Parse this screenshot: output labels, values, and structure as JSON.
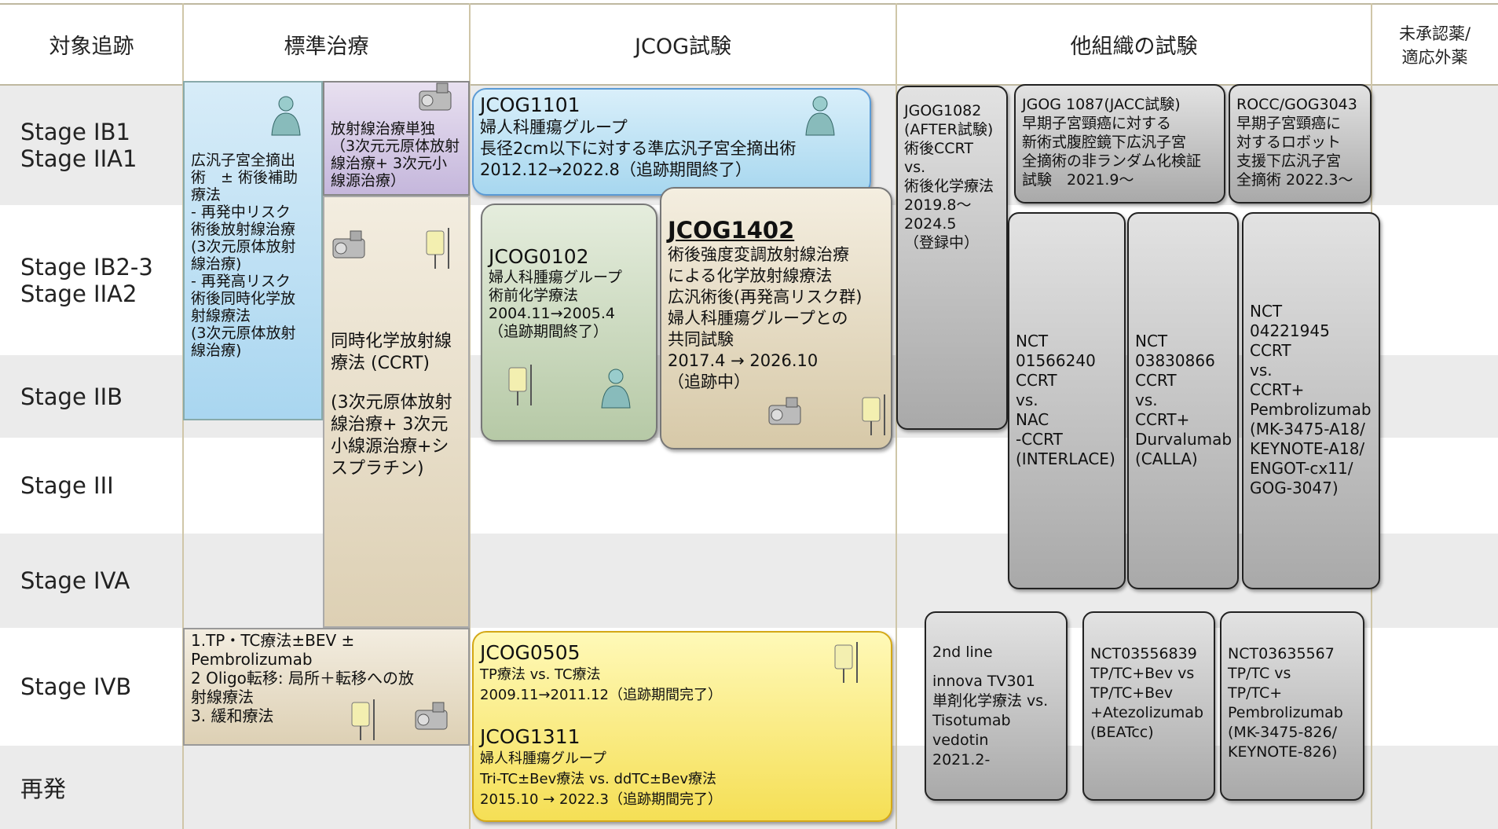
{
  "header": {
    "columns": [
      {
        "lines": [
          "対象追跡"
        ]
      },
      {
        "lines": [
          "標準治療"
        ]
      },
      {
        "lines": [
          "JCOG試験"
        ]
      },
      {
        "lines": [
          "他組織の試験"
        ]
      },
      {
        "lines": [
          "未承認薬/",
          "適応外薬"
        ]
      }
    ]
  },
  "rows": [
    {
      "lines": [
        "Stage IB1",
        "Stage IIA1"
      ]
    },
    {
      "lines": [
        "Stage IB2-3",
        "Stage IIA2"
      ]
    },
    {
      "lines": [
        "Stage IIB"
      ]
    },
    {
      "lines": [
        "Stage III"
      ]
    },
    {
      "lines": [
        "Stage IVA"
      ]
    },
    {
      "lines": [
        "Stage IVB"
      ]
    },
    {
      "lines": [
        "再発"
      ]
    }
  ],
  "boxes": [
    {
      "lines": [
        "広汎子宮全摘出",
        "術　± 術後補助",
        "療法",
        "- 再発中リスク",
        "術後放射線治療",
        "(3次元原体放射",
        "線治療)",
        "- 再発高リスク",
        "術後同時化学放",
        "射線療法",
        "(3次元原体放射",
        "線治療)"
      ]
    },
    {
      "lines": [
        "放射線治療単独",
        "（3次元元原体放射",
        "線治療+ 3次元小",
        "線源治療）"
      ]
    },
    {
      "lines": [
        "同時化学放射線",
        "療法 (CCRT)",
        "(3次元原体放射",
        "線治療+ 3次元",
        "小線源治療+シ",
        "スプラチン)"
      ]
    },
    {
      "lines": [
        "1.TP・TC療法±BEV ±",
        "Pembrolizumab",
        "2 Oligo転移: 局所＋転移への放",
        "射線療法",
        "3. 緩和療法"
      ]
    },
    {
      "lines": [
        "JCOG1101",
        "婦人科腫瘍グループ",
        "長径2cm以下に対する準広汎子宮全摘出術",
        "2012.12→2022.8（追跡期間終了）"
      ]
    },
    {
      "lines": [
        "JCOG0102",
        "婦人科腫瘍グループ",
        "術前化学療法",
        "2004.11→2005.4",
        "（追跡期間終了）"
      ]
    },
    {
      "lines": [
        "JCOG1402",
        "術後強度変調放射線治療",
        "による化学放射線療法",
        "広汎術後(再発高リスク群)",
        "婦人科腫瘍グループとの",
        "共同試験",
        "2017.4 →  2026.10",
        "（追跡中）"
      ]
    },
    {
      "lines": [
        "JCOG0505",
        "TP療法 vs. TC療法",
        "2009.11→2011.12（追跡期間完了）",
        "JCOG1311",
        "婦人科腫瘍グループ",
        "Tri-TC±Bev療法 vs. ddTC±Bev療法",
        "2015.10 → 2022.3（追跡期間完了）"
      ]
    },
    {
      "lines": [
        "JGOG1082",
        "(AFTER試験)",
        "術後CCRT",
        "vs.",
        "術後化学療法",
        "2019.8～",
        "2024.5",
        "（登録中）"
      ]
    },
    {
      "lines": [
        "JGOG 1087(JACC試験)",
        "早期子宮頸癌に対する",
        "新術式腹腔鏡下広汎子宮",
        "全摘術の非ランダム化検証",
        "試験　2021.9～"
      ]
    },
    {
      "lines": [
        "ROCC/GOG3043",
        "早期子宮頸癌に",
        "対するロボット",
        "支援下広汎子宮",
        "全摘術 2022.3～"
      ]
    },
    {
      "lines": [
        "NCT",
        "01566240",
        "CCRT",
        "vs.",
        "NAC",
        "-CCRT",
        "(INTERLACE)"
      ]
    },
    {
      "lines": [
        "NCT",
        "03830866",
        "CCRT",
        "vs.",
        "CCRT+",
        "Durvalumab",
        "(CALLA)"
      ]
    },
    {
      "lines": [
        "NCT",
        "04221945",
        "CCRT",
        "vs.",
        "CCRT+",
        "Pembrolizumab",
        "(MK-3475-A18/",
        "KEYNOTE-A18/",
        "ENGOT-cx11/",
        "GOG-3047)"
      ]
    },
    {
      "lines": [
        "2nd line",
        "innova TV301",
        "単剤化学療法 vs.",
        "Tisotumab",
        "vedotin",
        "2021.2-"
      ]
    },
    {
      "lines": [
        "NCT03556839",
        "TP/TC+Bev vs",
        "TP/TC+Bev",
        "+Atezolizumab",
        "(BEATcc)"
      ]
    },
    {
      "lines": [
        "NCT03635567",
        "TP/TC vs",
        "TP/TC+",
        "Pembrolizumab",
        "(MK-3475-826/",
        "KEYNOTE-826)"
      ]
    }
  ]
}
